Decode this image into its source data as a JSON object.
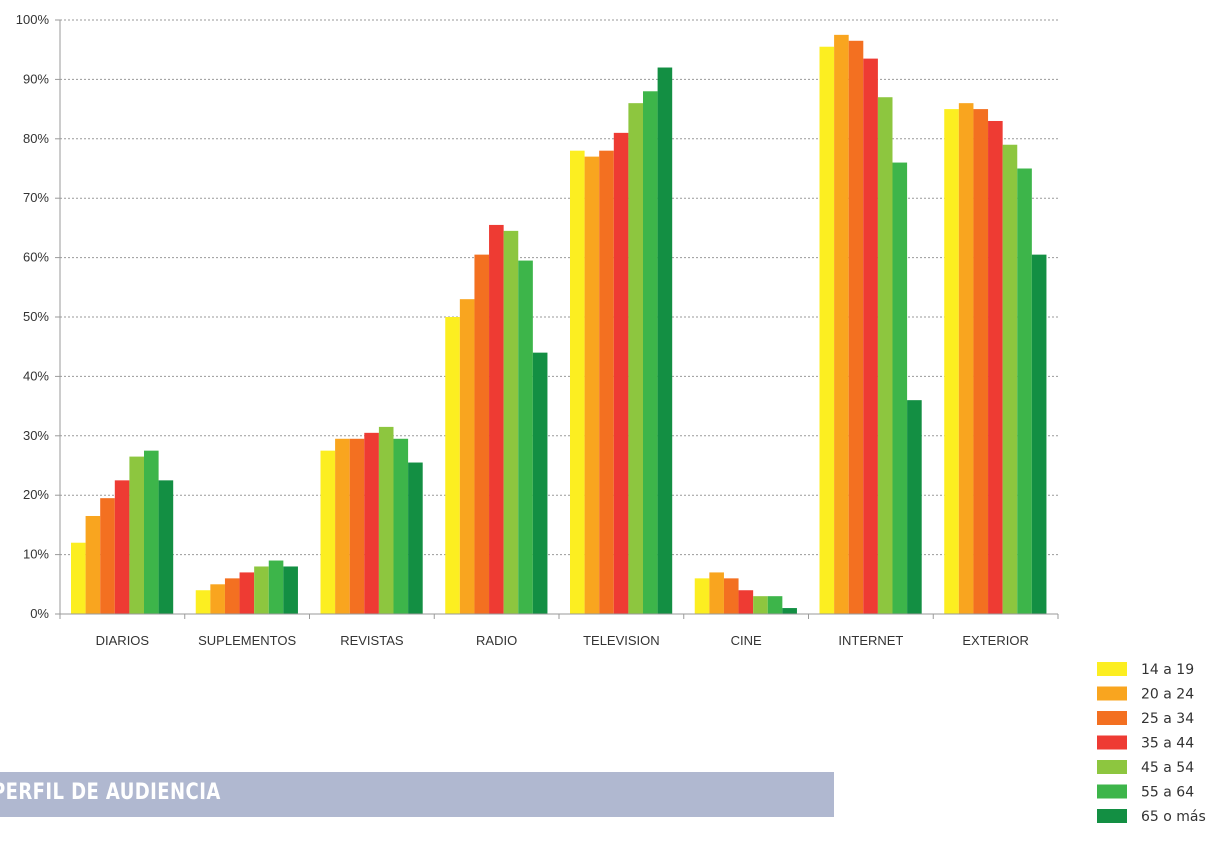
{
  "chart_data": {
    "type": "bar",
    "categories": [
      "DIARIOS",
      "SUPLEMENTOS",
      "REVISTAS",
      "RADIO",
      "TELEVISION",
      "CINE",
      "INTERNET",
      "EXTERIOR"
    ],
    "series": [
      {
        "name": "14 a 19",
        "color": "#fcee21",
        "values": [
          12,
          4,
          27.5,
          50,
          78,
          6,
          95.5,
          85
        ]
      },
      {
        "name": "20 a 24",
        "color": "#f9a51f",
        "values": [
          16.5,
          5,
          29.5,
          53,
          77,
          7,
          97.5,
          86
        ]
      },
      {
        "name": "25 a 34",
        "color": "#f37021",
        "values": [
          19.5,
          6,
          29.5,
          60.5,
          78,
          6,
          96.5,
          85
        ]
      },
      {
        "name": "35 a 44",
        "color": "#ee3b33",
        "values": [
          22.5,
          7,
          30.5,
          65.5,
          81,
          4,
          93.5,
          83
        ]
      },
      {
        "name": "45 a 54",
        "color": "#8dc63f",
        "values": [
          26.5,
          8,
          31.5,
          64.5,
          86,
          3,
          87,
          79
        ]
      },
      {
        "name": "55 a 64",
        "color": "#3db54a",
        "values": [
          27.5,
          9,
          29.5,
          59.5,
          88,
          3,
          76,
          75
        ]
      },
      {
        "name": "65 o más",
        "color": "#138f43",
        "values": [
          22.5,
          8,
          25.5,
          44,
          92,
          1,
          36,
          60.5
        ]
      }
    ],
    "ylim": [
      0,
      100
    ],
    "yticks": [
      "0%",
      "10%",
      "20%",
      "30%",
      "40%",
      "50%",
      "60%",
      "70%",
      "80%",
      "90%",
      "100%"
    ],
    "grid": true,
    "legend_position": "bottom-right"
  },
  "section": {
    "title": "PERFIL DE AUDIENCIA"
  }
}
